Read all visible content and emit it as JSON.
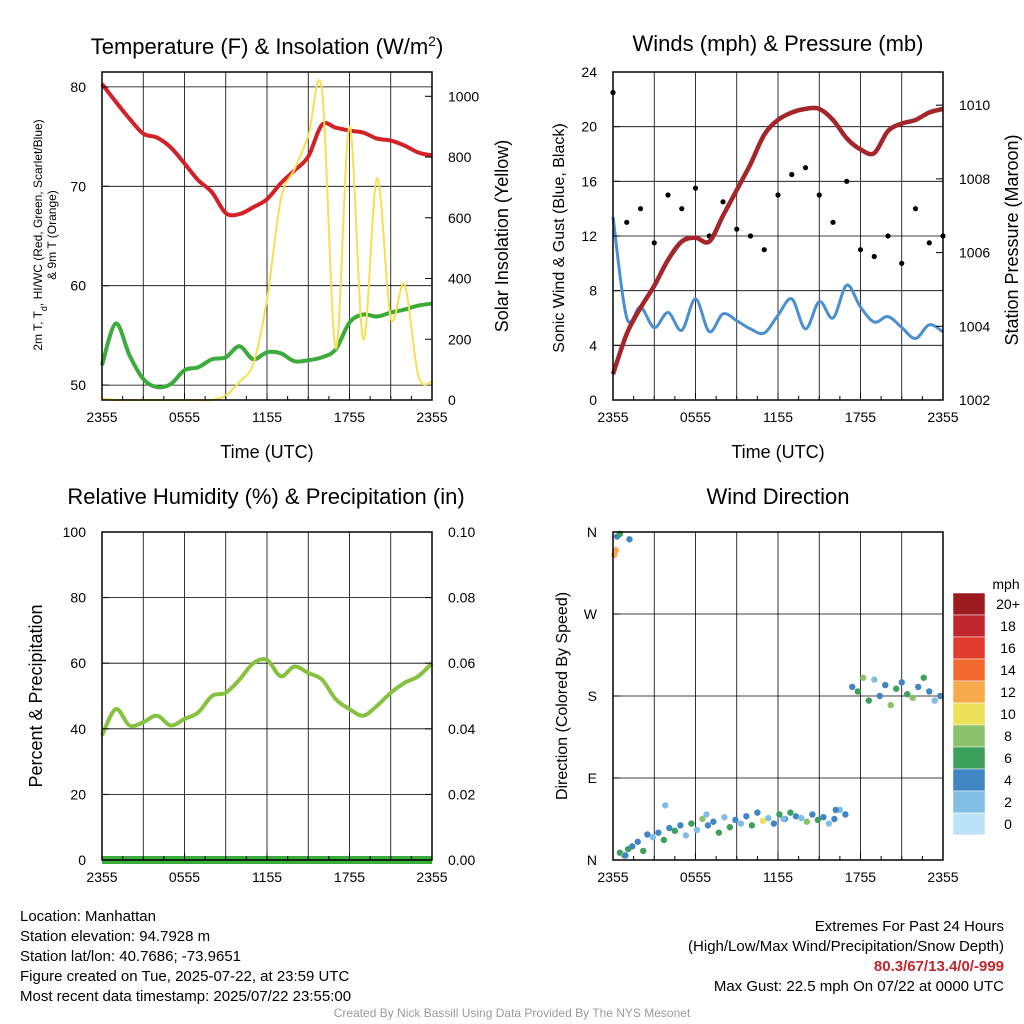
{
  "chart_data": [
    {
      "type": "line",
      "title": "Temperature (F) & Insolation (W/m",
      "title_sup": "2",
      "title_close": ")",
      "xlabel": "Time (UTC)",
      "ylabel_lines": [
        "2m T, T",
        "d",
        ", HI/WC (Red, Green, Scarlet/Blue)",
        "& 9m T (Orange)"
      ],
      "ylabel2": "Solar Insolation (Yellow)",
      "xticks": [
        "2355",
        "0555",
        "1155",
        "1755",
        "2355"
      ],
      "ylim": [
        48.5,
        81.5
      ],
      "yticks": [
        50,
        60,
        70,
        80
      ],
      "y2lim": [
        0,
        1080
      ],
      "y2ticks": [
        0,
        200,
        400,
        600,
        800,
        1000
      ],
      "x_hours_since_2355": [
        0,
        1,
        2,
        3,
        4,
        5,
        6,
        7,
        8,
        9,
        10,
        11,
        12,
        13,
        14,
        15,
        16,
        17,
        18,
        19,
        20,
        21,
        22,
        23,
        24
      ],
      "series": [
        {
          "color": "#d42027",
          "values": [
            80.3,
            78.5,
            76.8,
            75.3,
            74.9,
            73.9,
            72.3,
            70.6,
            69.4,
            67.3,
            67.2,
            67.9,
            68.7,
            70.3,
            71.6,
            73.0,
            76.2,
            75.9,
            75.6,
            75.4,
            74.8,
            74.6,
            74.1,
            73.4,
            73.1
          ]
        },
        {
          "color": "#3bab3c",
          "values": [
            52.0,
            56.2,
            53.0,
            50.6,
            49.8,
            50.1,
            51.5,
            51.8,
            52.6,
            52.8,
            53.9,
            52.6,
            53.3,
            53.2,
            52.4,
            52.5,
            52.8,
            53.6,
            56.3,
            57.1,
            56.9,
            57.3,
            57.6,
            58.0,
            58.2
          ]
        },
        {
          "color": "#f7df4e",
          "axis": "y2",
          "values": [
            5,
            0,
            0,
            0,
            0,
            0,
            0,
            0,
            0,
            15,
            60,
            120,
            330,
            660,
            760,
            870,
            1020,
            170,
            900,
            200,
            730,
            270,
            380,
            80,
            60
          ]
        }
      ]
    },
    {
      "type": "scatter",
      "title": "Winds (mph) & Pressure (mb)",
      "xlabel": "Time (UTC)",
      "ylabel": "Sonic Wind & Gust (Blue, Black)",
      "ylabel2": "Station Pressure (Maroon)",
      "xticks": [
        "2355",
        "0555",
        "1155",
        "1755",
        "2355"
      ],
      "ylim": [
        0,
        24
      ],
      "yticks": [
        0,
        4,
        8,
        12,
        16,
        20,
        24
      ],
      "y2lim": [
        1002,
        1010.9
      ],
      "y2ticks": [
        1002,
        1004,
        1006,
        1008,
        1010
      ],
      "x_hours_since_2355": [
        0,
        1,
        2,
        3,
        4,
        5,
        6,
        7,
        8,
        9,
        10,
        11,
        12,
        13,
        14,
        15,
        16,
        17,
        18,
        19,
        20,
        21,
        22,
        23,
        24
      ],
      "series": [
        {
          "name_hint": "wind",
          "color": "#4a90d0",
          "values": [
            13.4,
            6.0,
            6.8,
            5.3,
            6.4,
            5.1,
            7.4,
            5.0,
            6.3,
            5.8,
            5.2,
            4.9,
            6.2,
            7.4,
            5.2,
            7.2,
            6.0,
            8.4,
            6.8,
            5.7,
            6.1,
            5.3,
            4.5,
            5.5,
            5.0
          ]
        },
        {
          "name_hint": "gust",
          "color": "#000000",
          "values": [
            22.5,
            13.0,
            14.0,
            11.5,
            15.0,
            14.0,
            15.5,
            12.0,
            14.5,
            12.5,
            12.0,
            11.0,
            15.0,
            16.5,
            17.0,
            15.0,
            13.0,
            16.0,
            11.0,
            10.5,
            12.0,
            10.0,
            14.0,
            11.5,
            12.0
          ]
        },
        {
          "name_hint": "pressure",
          "color": "#a3262a",
          "axis": "y2",
          "values": [
            1002.7,
            1003.8,
            1004.5,
            1005.1,
            1005.8,
            1006.3,
            1006.4,
            1006.3,
            1007.0,
            1007.7,
            1008.4,
            1009.2,
            1009.6,
            1009.8,
            1009.9,
            1009.9,
            1009.6,
            1009.1,
            1008.8,
            1008.7,
            1009.3,
            1009.5,
            1009.6,
            1009.8,
            1009.9
          ]
        }
      ]
    },
    {
      "type": "line",
      "title": "Relative Humidity (%) & Precipitation (in)",
      "ylabel": "Percent & Precipitation",
      "xticks": [
        "2355",
        "0555",
        "1155",
        "1755",
        "2355"
      ],
      "ylim": [
        0,
        100
      ],
      "yticks": [
        0,
        20,
        40,
        60,
        80,
        100
      ],
      "y2lim": [
        0,
        0.1
      ],
      "y2ticks": [
        "0.00",
        "0.02",
        "0.04",
        "0.06",
        "0.08",
        "0.10"
      ],
      "x_hours_since_2355": [
        0,
        1,
        2,
        3,
        4,
        5,
        6,
        7,
        8,
        9,
        10,
        11,
        12,
        13,
        14,
        15,
        16,
        17,
        18,
        19,
        20,
        21,
        22,
        23,
        24
      ],
      "series": [
        {
          "color": "#86c240",
          "values": [
            38,
            46,
            41,
            42,
            44,
            41,
            43,
            45,
            50,
            51,
            55,
            60,
            61,
            56,
            59,
            57,
            55,
            49,
            46,
            44,
            47,
            51,
            54,
            56,
            60
          ]
        },
        {
          "color": "#3bab3c",
          "axis": "y2",
          "values": [
            0,
            0,
            0,
            0,
            0,
            0,
            0,
            0,
            0,
            0,
            0,
            0,
            0,
            0,
            0,
            0,
            0,
            0,
            0,
            0,
            0,
            0,
            0,
            0,
            0
          ]
        }
      ]
    },
    {
      "type": "scatter",
      "title": "Wind Direction",
      "ylabel": "Direction (Colored By Speed)",
      "xticks": [
        "2355",
        "0555",
        "1155",
        "1755",
        "2355"
      ],
      "yticks": [
        "N",
        "E",
        "S",
        "W",
        "N"
      ],
      "ylim": [
        0,
        360
      ],
      "x_hours_since_2355": [
        0.1,
        0.2,
        0.5,
        0.8,
        1.1,
        1.4,
        1.8,
        2.2,
        2.5,
        2.9,
        3.3,
        3.7,
        4.1,
        4.5,
        4.9,
        5.3,
        5.7,
        6.1,
        6.5,
        6.9,
        7.3,
        7.7,
        8.1,
        8.5,
        8.9,
        9.3,
        9.7,
        10.1,
        10.5,
        10.9,
        11.3,
        11.7,
        12.1,
        12.5,
        12.9,
        13.3,
        13.7,
        14.1,
        14.5,
        14.9,
        15.3,
        15.7,
        16.1,
        16.5,
        16.9,
        17.4,
        17.8,
        18.2,
        18.6,
        19.0,
        19.4,
        19.8,
        20.2,
        20.6,
        21.0,
        21.4,
        21.8,
        22.2,
        22.6,
        23.0,
        23.4,
        23.8,
        0.3,
        0.5,
        1.2,
        0.9,
        3.8,
        6.8,
        12.4,
        16.2
      ],
      "direction_deg": [
        335,
        340,
        8,
        5,
        12,
        15,
        20,
        10,
        28,
        25,
        30,
        22,
        35,
        32,
        38,
        27,
        40,
        33,
        45,
        38,
        42,
        30,
        47,
        36,
        44,
        40,
        48,
        38,
        52,
        43,
        46,
        40,
        50,
        45,
        52,
        48,
        46,
        42,
        50,
        44,
        47,
        40,
        45,
        55,
        50,
        190,
        185,
        200,
        175,
        198,
        180,
        192,
        170,
        188,
        195,
        182,
        178,
        190,
        200,
        185,
        175,
        180,
        355,
        358,
        352,
        5,
        60,
        50,
        45,
        55
      ],
      "speed_mph": [
        12,
        12,
        6,
        8,
        7,
        5,
        4,
        6,
        5,
        3,
        4,
        6,
        5,
        7,
        4,
        3,
        6,
        2,
        8,
        5,
        4,
        6,
        3,
        7,
        5,
        2,
        4,
        6,
        5,
        10,
        3,
        4,
        7,
        5,
        6,
        4,
        3,
        8,
        4,
        6,
        5,
        3,
        4,
        2,
        5,
        4,
        6,
        8,
        7,
        3,
        5,
        4,
        9,
        6,
        4,
        7,
        8,
        5,
        6,
        4,
        3,
        5,
        5,
        7,
        5,
        4,
        3,
        3,
        2,
        4
      ],
      "colorbar": {
        "unit": "mph",
        "labels": [
          "20+",
          "18",
          "16",
          "14",
          "12",
          "10",
          "8",
          "6",
          "4",
          "2",
          "0"
        ],
        "colors": [
          "#9b1b1e",
          "#c0272d",
          "#e03b2c",
          "#f26a2d",
          "#f7a94b",
          "#ede05a",
          "#8cc36a",
          "#3aa05a",
          "#3f86c3",
          "#82bde6",
          "#bde3f7"
        ]
      }
    }
  ],
  "footer": {
    "location": "Location: Manhattan",
    "elevation": "Station elevation: 94.7928 m",
    "latlon": "Station lat/lon: 40.7686; -73.9651",
    "created": "Figure created on Tue, 2025-07-22, at 23:59 UTC",
    "recent": "Most recent data timestamp: 2025/07/22 23:55:00",
    "extremes_title": "Extremes For Past 24 Hours",
    "extremes_legend": "(High/Low/Max Wind/Precipitation/Snow Depth)",
    "extremes_values": "80.3/67/13.4/0/-999",
    "max_gust": "Max Gust: 22.5 mph On 07/22 at 0000 UTC",
    "credit": "Created By Nick Bassill Using Data Provided By The NYS Mesonet"
  }
}
